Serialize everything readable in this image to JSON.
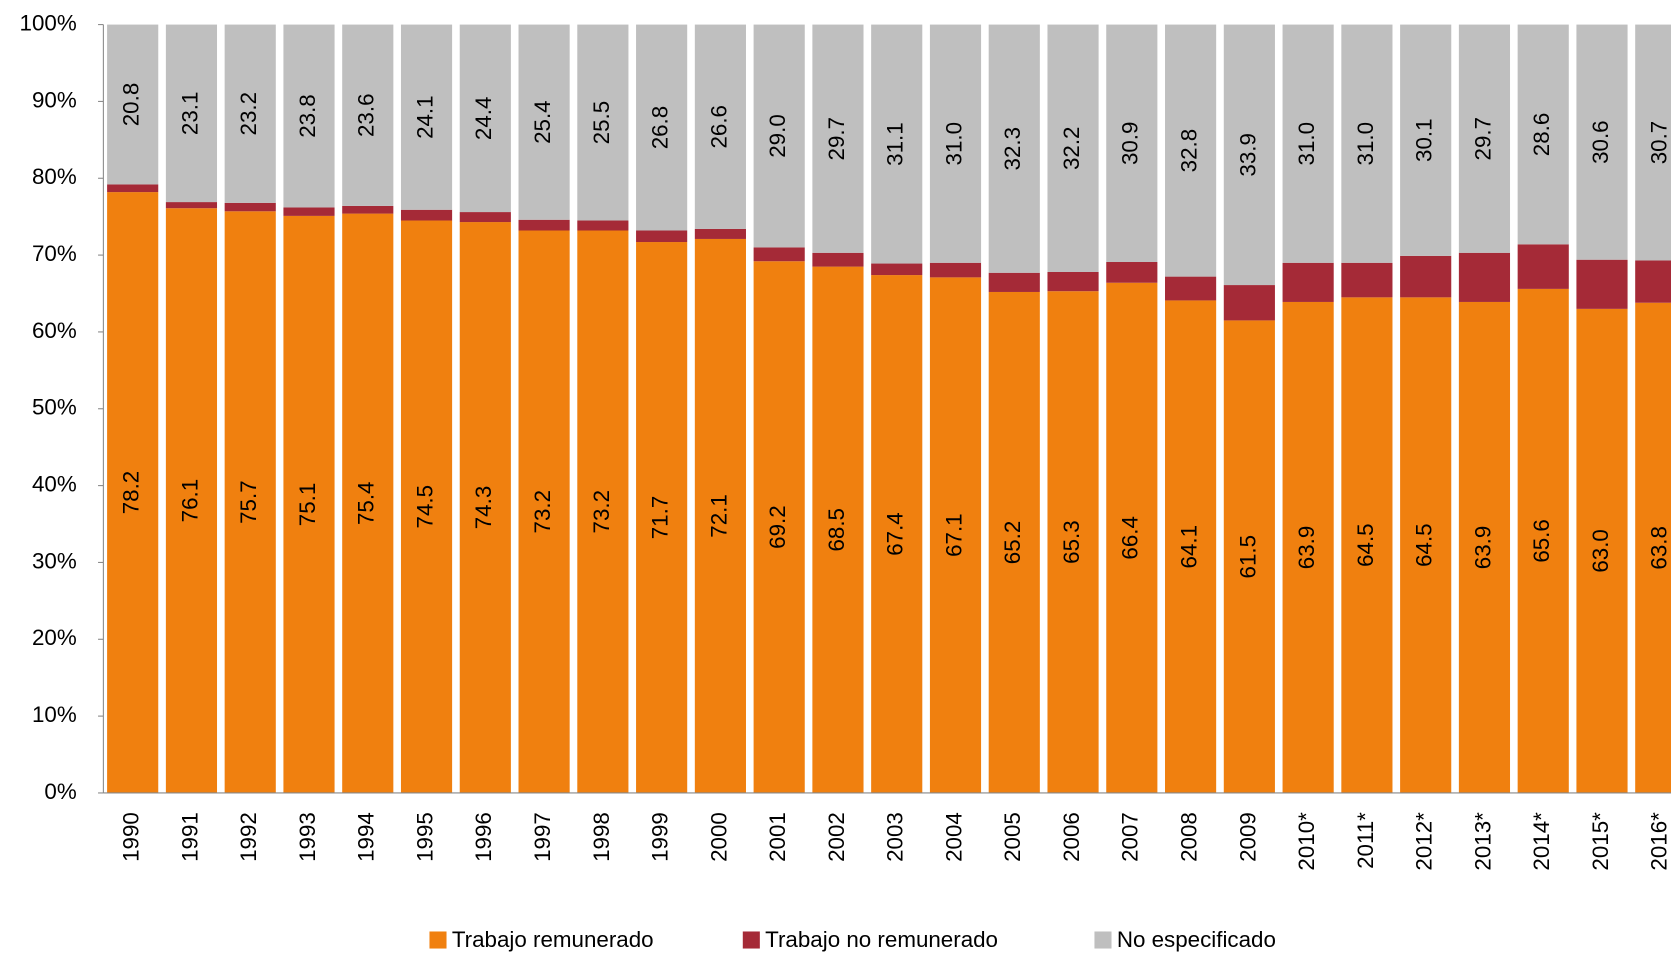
{
  "chart_data": {
    "type": "stacked_bar",
    "categories": [
      "1990",
      "1991",
      "1992",
      "1993",
      "1994",
      "1995",
      "1996",
      "1997",
      "1998",
      "1999",
      "2000",
      "2001",
      "2002",
      "2003",
      "2004",
      "2005",
      "2006",
      "2007",
      "2008",
      "2009",
      "2010*",
      "2011*",
      "2012*",
      "2013*",
      "2014*",
      "2015*",
      "2016*"
    ],
    "series": [
      {
        "name": "Trabajo remunerado",
        "color": "#f0800f",
        "values": [
          78.2,
          76.1,
          75.7,
          75.1,
          75.4,
          74.5,
          74.3,
          73.2,
          73.2,
          71.7,
          72.1,
          69.2,
          68.5,
          67.4,
          67.1,
          65.2,
          65.3,
          66.4,
          64.1,
          61.5,
          63.9,
          64.5,
          64.5,
          63.9,
          65.6,
          63.0,
          63.8
        ],
        "value_labels": [
          "78.2",
          "76.1",
          "75.7",
          "75.1",
          "75.4",
          "74.5",
          "74.3",
          "73.2",
          "73.2",
          "71.7",
          "72.1",
          "69.2",
          "68.5",
          "67.4",
          "67.1",
          "65.2",
          "65.3",
          "66.4",
          "64.1",
          "61.5",
          "63.9",
          "64.5",
          "64.5",
          "63.9",
          "65.6",
          "63.0",
          "63.8"
        ]
      },
      {
        "name": "Trabajo no remunerado",
        "color": "#a52a37",
        "values": [
          1.0,
          0.8,
          1.1,
          1.1,
          1.0,
          1.4,
          1.3,
          1.4,
          1.3,
          1.5,
          1.3,
          1.8,
          1.8,
          1.5,
          1.9,
          2.5,
          2.5,
          2.7,
          3.1,
          4.6,
          5.1,
          4.5,
          5.4,
          6.4,
          5.8,
          6.4,
          5.5
        ]
      },
      {
        "name": "No especificado",
        "color": "#bfbfbf",
        "values": [
          20.8,
          23.1,
          23.2,
          23.8,
          23.6,
          24.1,
          24.4,
          25.4,
          25.5,
          26.8,
          26.6,
          29.0,
          29.7,
          31.1,
          31.0,
          32.3,
          32.2,
          30.9,
          32.8,
          33.9,
          31.0,
          31.0,
          30.1,
          29.7,
          28.6,
          30.6,
          30.7
        ],
        "value_labels": [
          "20.8",
          "23.1",
          "23.2",
          "23.8",
          "23.6",
          "24.1",
          "24.4",
          "25.4",
          "25.5",
          "26.8",
          "26.6",
          "29.0",
          "29.7",
          "31.1",
          "31.0",
          "32.3",
          "32.2",
          "30.9",
          "32.8",
          "33.9",
          "31.0",
          "31.0",
          "30.1",
          "29.7",
          "28.6",
          "30.6",
          "30.7"
        ]
      }
    ],
    "ylim": [
      0,
      100
    ],
    "yticks": [
      {
        "value": 0,
        "label": "0%"
      },
      {
        "value": 10,
        "label": "10%"
      },
      {
        "value": 20,
        "label": "20%"
      },
      {
        "value": 30,
        "label": "30%"
      },
      {
        "value": 40,
        "label": "40%"
      },
      {
        "value": 50,
        "label": "50%"
      },
      {
        "value": 60,
        "label": "60%"
      },
      {
        "value": 70,
        "label": "70%"
      },
      {
        "value": 80,
        "label": "80%"
      },
      {
        "value": 90,
        "label": "90%"
      },
      {
        "value": 100,
        "label": "100%"
      }
    ],
    "legend": "bottom"
  }
}
